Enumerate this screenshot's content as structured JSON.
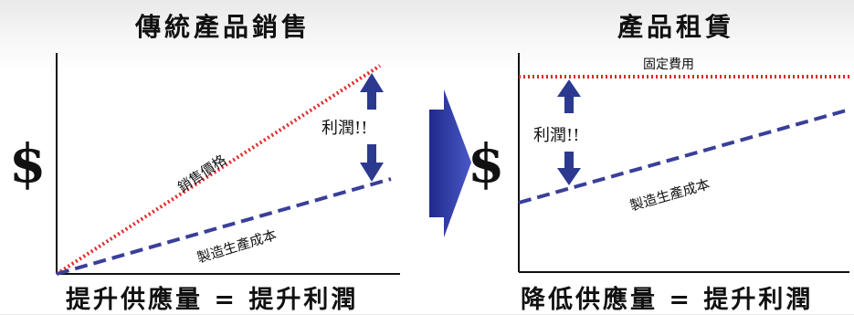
{
  "left": {
    "title": "傳統產品銷售",
    "line_price_label": "銷售價格",
    "line_cost_label": "製造生產成本",
    "profit_label": "利潤!!",
    "caption": "提升供應量 = 提升利潤",
    "currency_symbol": "$"
  },
  "right": {
    "title": "產品租賃",
    "line_fixed_label": "固定費用",
    "line_cost_label": "製造生產成本",
    "profit_label": "利潤!!",
    "caption": "降低供應量 = 提升利潤",
    "currency_symbol": "$"
  },
  "colors": {
    "price_line": "#e0262a",
    "cost_line": "#3a3f9a",
    "arrow": "#2b3a8f",
    "axis": "#111111"
  },
  "icons": {
    "transition_arrow": "big-right-arrow-icon",
    "profit_arrows": "double-vertical-arrow-icon"
  }
}
